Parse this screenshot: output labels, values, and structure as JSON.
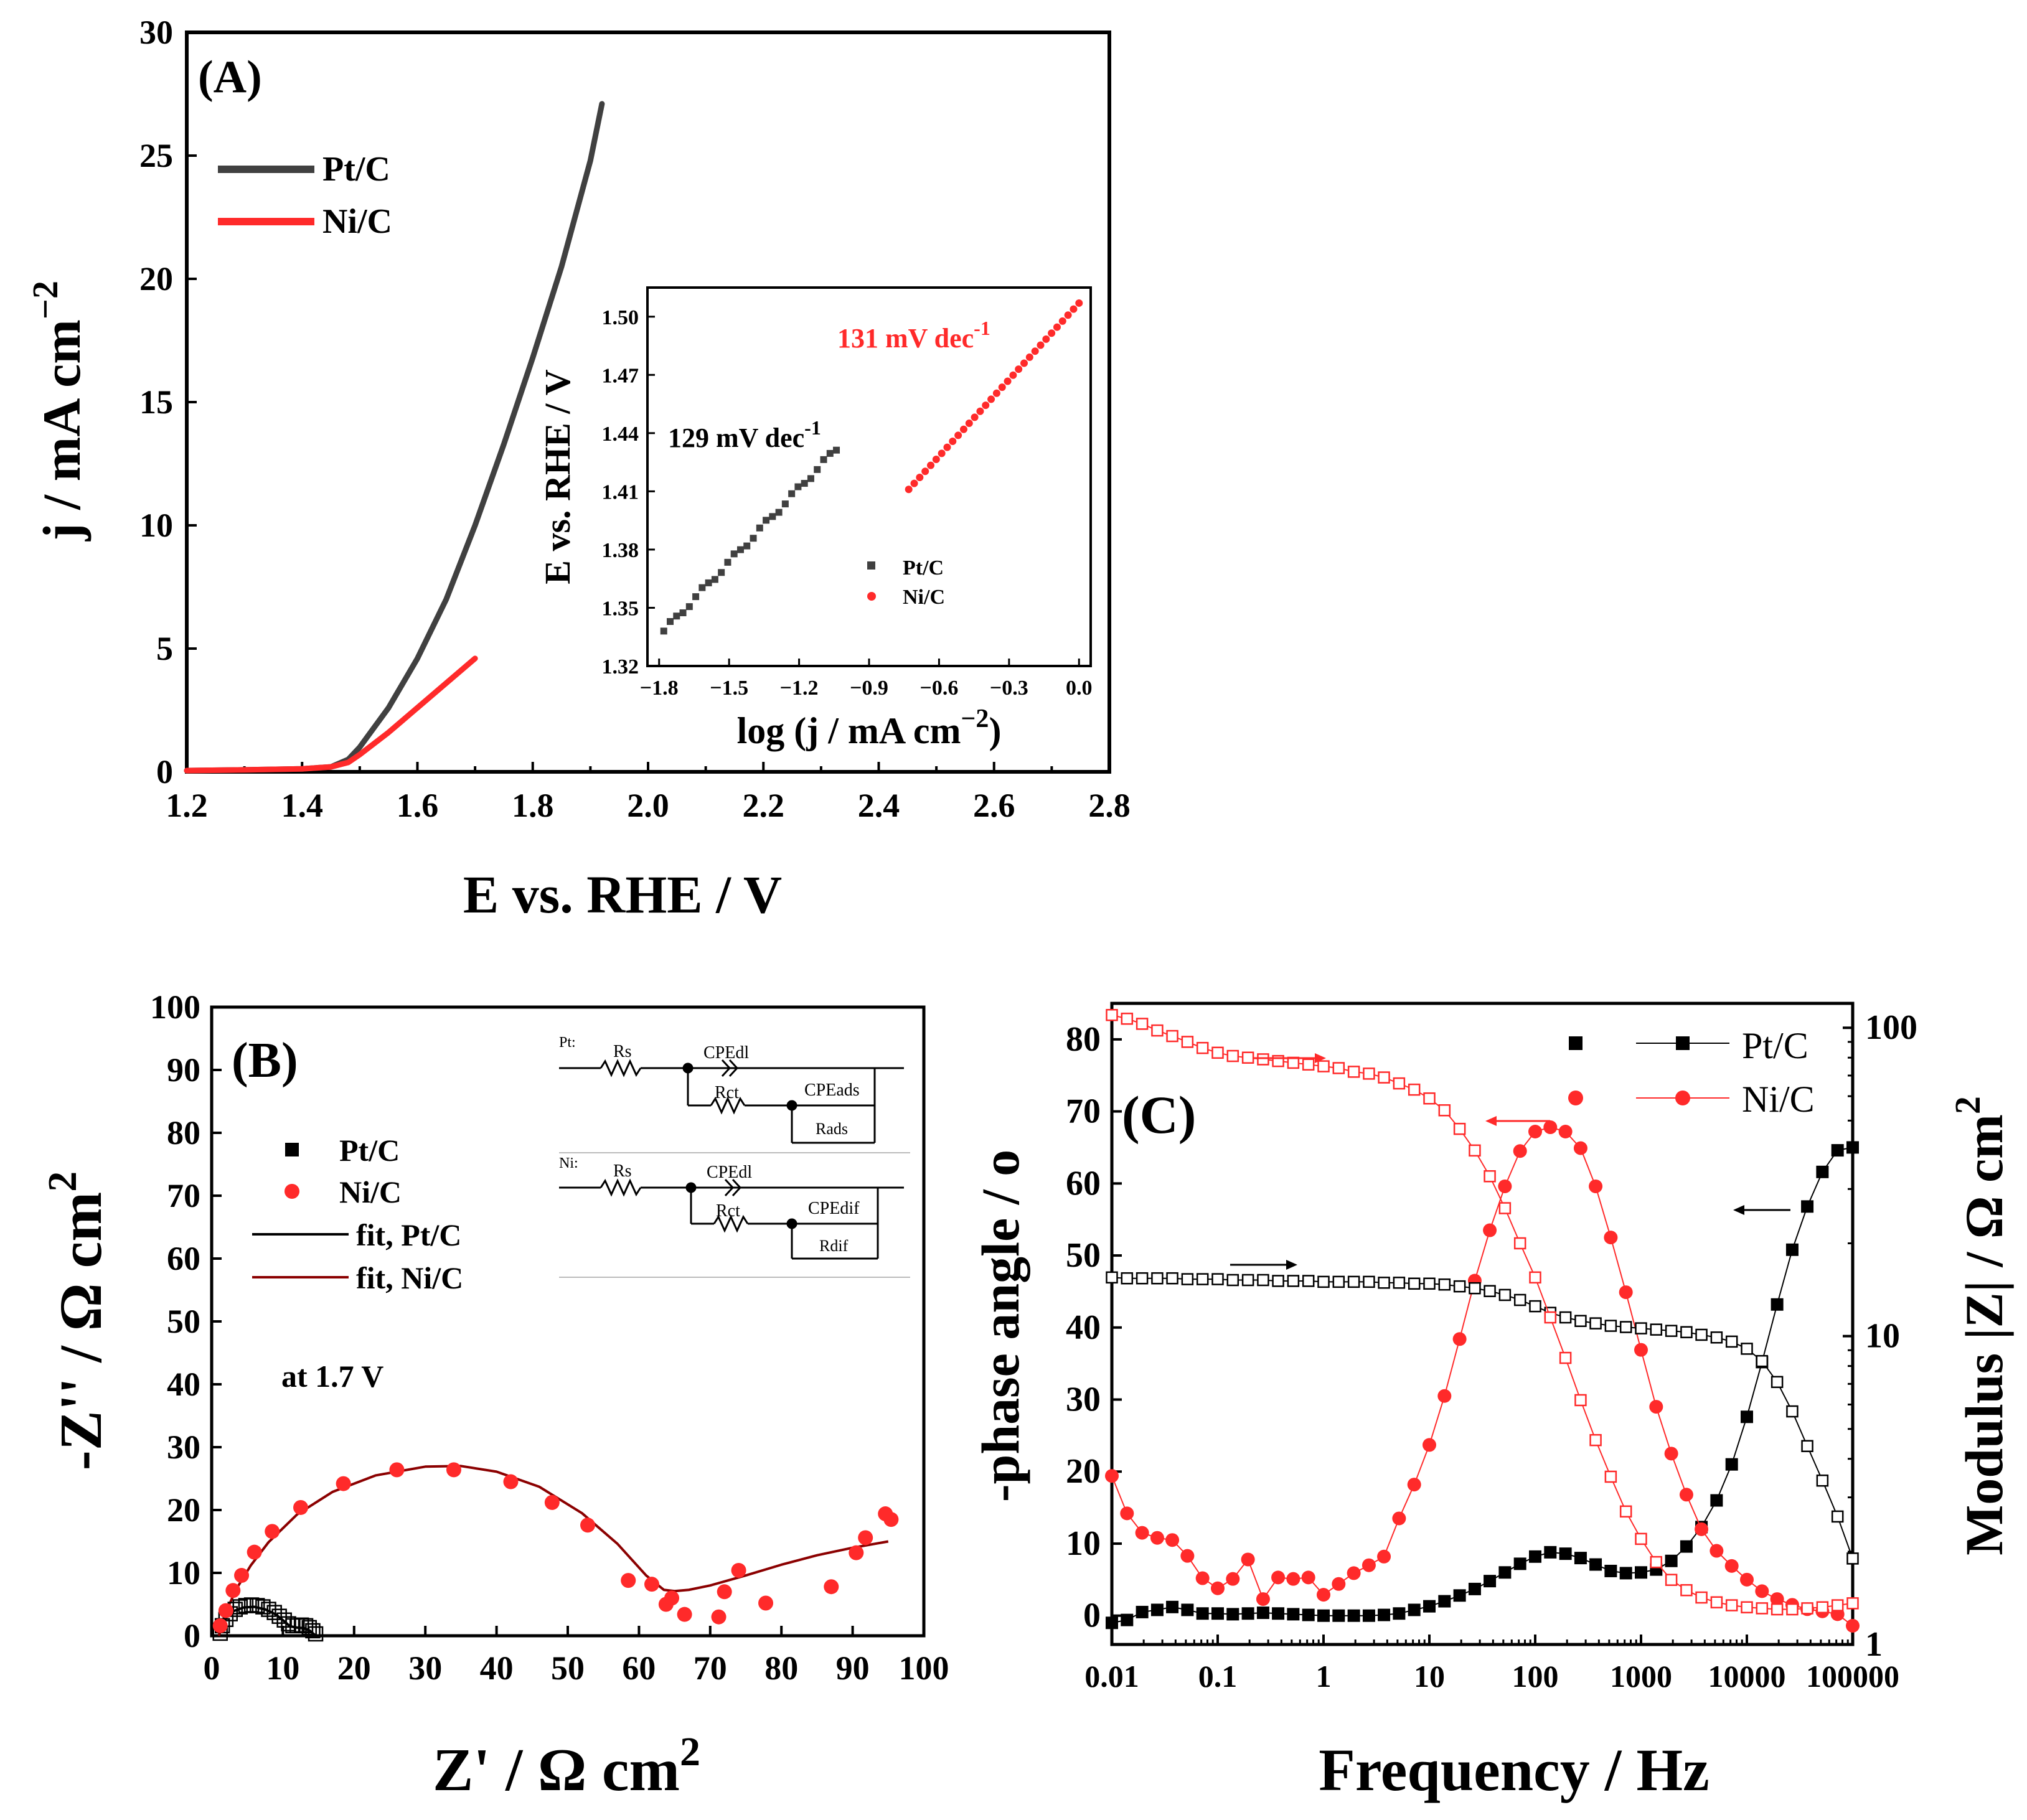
{
  "colors": {
    "pt": "#404040",
    "ni": "#ff2a2a",
    "ni_fit": "#8b0000",
    "black": "#000000"
  },
  "chart_data": [
    {
      "id": "A",
      "panel_label": "(A)",
      "type": "line",
      "xlabel": "E vs. RHE / V",
      "ylabel_main": "j / mA cm",
      "ylabel_sup": "−2",
      "xlim": [
        1.2,
        2.8
      ],
      "ylim": [
        0,
        30
      ],
      "xticks": [
        1.2,
        1.4,
        1.6,
        1.8,
        2.0,
        2.2,
        2.4,
        2.6,
        2.8
      ],
      "xtick_labels": [
        "1.2",
        "1.4",
        "1.6",
        "1.8",
        "2.0",
        "2.2",
        "2.4",
        "2.6",
        "2.8"
      ],
      "yticks": [
        0,
        5,
        10,
        15,
        20,
        25,
        30
      ],
      "ytick_labels": [
        "0",
        "5",
        "10",
        "15",
        "20",
        "25",
        "30"
      ],
      "legend": [
        "Pt/C",
        "Ni/C"
      ],
      "series": [
        {
          "name": "Pt/C",
          "x": [
            1.2,
            1.3,
            1.4,
            1.45,
            1.48,
            1.5,
            1.55,
            1.6,
            1.65,
            1.7,
            1.75,
            1.8,
            1.85,
            1.9,
            1.92
          ],
          "y": [
            0.05,
            0.08,
            0.12,
            0.2,
            0.5,
            1.0,
            2.6,
            4.6,
            7.0,
            10.0,
            13.3,
            16.8,
            20.5,
            24.8,
            27.1
          ]
        },
        {
          "name": "Ni/C",
          "x": [
            1.2,
            1.3,
            1.4,
            1.45,
            1.48,
            1.5,
            1.55,
            1.6,
            1.65,
            1.7
          ],
          "y": [
            0.05,
            0.08,
            0.12,
            0.2,
            0.38,
            0.7,
            1.6,
            2.6,
            3.6,
            4.6
          ]
        }
      ],
      "inset": {
        "type": "scatter",
        "xlabel_main": "log (j / mA cm",
        "xlabel_sup": "−2",
        "xlabel_end": ")",
        "ylabel": "E vs. RHE / V",
        "xlim": [
          -1.85,
          0.05
        ],
        "ylim": [
          1.32,
          1.515
        ],
        "xticks": [
          -1.8,
          -1.5,
          -1.2,
          -0.9,
          -0.6,
          -0.3,
          0.0
        ],
        "xtick_labels": [
          "−1.8",
          "−1.5",
          "−1.2",
          "−0.9",
          "−0.6",
          "−0.3",
          "0.0"
        ],
        "yticks": [
          1.32,
          1.35,
          1.38,
          1.41,
          1.44,
          1.47,
          1.5
        ],
        "ytick_labels": [
          "1.32",
          "1.35",
          "1.38",
          "1.41",
          "1.44",
          "1.47",
          "1.50"
        ],
        "legend": [
          "Pt/C",
          "Ni/C"
        ],
        "annotation_pt_main": "129 mV dec",
        "annotation_pt_sup": "-1",
        "annotation_ni_main": "131 mV dec",
        "annotation_ni_sup": "-1",
        "series": [
          {
            "name": "Pt/C",
            "x_start": -1.78,
            "x_end": -1.04,
            "y_start": 1.338,
            "y_end": 1.432,
            "n": 28
          },
          {
            "name": "Ni/C",
            "x_start": -0.73,
            "x_end": 0.0,
            "y_start": 1.411,
            "y_end": 1.507,
            "n": 32
          }
        ]
      }
    },
    {
      "id": "B",
      "panel_label": "(B)",
      "type": "scatter",
      "xlabel_main": "Z' / Ω cm",
      "xlabel_sup": "2",
      "ylabel_main": "-Z'' / Ω  cm",
      "ylabel_sup": "2",
      "xlim": [
        0,
        100
      ],
      "ylim": [
        0,
        100
      ],
      "xticks": [
        0,
        10,
        20,
        30,
        40,
        50,
        60,
        70,
        80,
        90,
        100
      ],
      "xtick_labels": [
        "0",
        "10",
        "20",
        "30",
        "40",
        "50",
        "60",
        "70",
        "80",
        "90",
        "100"
      ],
      "yticks": [
        0,
        10,
        20,
        30,
        40,
        50,
        60,
        70,
        80,
        90,
        100
      ],
      "ytick_labels": [
        "0",
        "10",
        "20",
        "30",
        "40",
        "50",
        "60",
        "70",
        "80",
        "90",
        "100"
      ],
      "legend": [
        "Pt/C",
        "Ni/C",
        "fit, Pt/C",
        "fit, Ni/C"
      ],
      "note": "at 1.7 V",
      "series": [
        {
          "name": "Pt/C",
          "x": [
            1.2,
            1.5,
            2.0,
            2.6,
            3.3,
            4.0,
            4.8,
            5.6,
            6.4,
            7.2,
            8.0,
            8.8,
            9.5,
            10.2,
            10.8,
            11.4,
            12.0,
            12.6,
            13.2,
            13.7,
            14.2,
            14.6
          ],
          "y": [
            0.4,
            1.6,
            2.6,
            3.5,
            4.2,
            4.6,
            4.8,
            4.9,
            4.8,
            4.6,
            4.2,
            3.7,
            3.1,
            2.5,
            1.9,
            1.6,
            1.6,
            1.7,
            1.6,
            1.3,
            0.8,
            0.3
          ]
        },
        {
          "name": "Ni/C",
          "x": [
            1.2,
            2.0,
            3.0,
            4.2,
            6.0,
            8.5,
            12.5,
            18.5,
            26.0,
            34.0,
            42.0,
            47.8,
            52.8,
            58.5,
            61.8,
            63.8,
            64.6,
            66.4,
            71.2,
            72.0,
            74.0,
            77.8,
            87.0,
            90.5,
            91.8,
            94.6,
            95.4
          ],
          "y": [
            1.6,
            4.0,
            7.2,
            9.6,
            13.3,
            16.6,
            20.4,
            24.2,
            26.4,
            26.4,
            24.5,
            21.2,
            17.6,
            8.8,
            8.2,
            5.0,
            6.0,
            3.4,
            3.0,
            7.0,
            10.4,
            5.2,
            7.8,
            13.2,
            15.6,
            19.4,
            18.5
          ]
        },
        {
          "name": "fit, Pt/C",
          "x": [
            1.0,
            2.0,
            3.0,
            4.5,
            6.0,
            7.5,
            9.0,
            10.2,
            11.0,
            12.0,
            13.0,
            13.8,
            14.5
          ],
          "y": [
            0.0,
            2.9,
            3.9,
            4.5,
            4.6,
            4.2,
            3.4,
            2.3,
            1.5,
            1.3,
            1.2,
            0.8,
            0.1
          ]
        },
        {
          "name": "fit, Ni/C",
          "x": [
            1.0,
            2.0,
            3.5,
            5.5,
            8.0,
            12.0,
            17.0,
            23.0,
            30.0,
            35.0,
            40.0,
            46.0,
            52.0,
            57.0,
            61.0,
            63.5,
            65.0,
            67.0,
            70.0,
            75.0,
            80.0,
            85.0,
            90.0,
            95.0
          ],
          "y": [
            0.0,
            3.8,
            7.5,
            11.2,
            14.9,
            19.3,
            22.9,
            25.5,
            26.9,
            27.0,
            26.1,
            23.7,
            19.5,
            14.6,
            9.6,
            7.3,
            7.1,
            7.3,
            8.0,
            9.6,
            11.3,
            12.8,
            14.0,
            15.0
          ]
        }
      ],
      "circuits": [
        {
          "label": "Pt:",
          "r1": "Rs",
          "cpe1": "CPEdl",
          "r2": "Rct",
          "cpe2": "CPEads",
          "r3": "Rads"
        },
        {
          "label": "Ni:",
          "r1": "Rs",
          "cpe1": "CPEdl",
          "r2": "Rct",
          "cpe2": "CPEdif",
          "r3": "Rdif"
        }
      ]
    },
    {
      "id": "C",
      "panel_label": "(C)",
      "type": "line",
      "xscale": "log",
      "xlabel": "Frequency / Hz",
      "ylabel_left": "-phase angle / o",
      "ylabel_right_main": "Modulus |Z| / Ω cm",
      "ylabel_right_sup": "2",
      "xlim": [
        0.01,
        100000
      ],
      "ylim_left": [
        -4,
        85
      ],
      "ylim_right": [
        1,
        120
      ],
      "xticks": [
        0.01,
        0.1,
        1,
        10,
        100,
        1000,
        10000,
        100000
      ],
      "xtick_labels": [
        "0.01",
        "0.1",
        "1",
        "10",
        "100",
        "1000",
        "10000",
        "100000"
      ],
      "yticks_left": [
        0,
        10,
        20,
        30,
        40,
        50,
        60,
        70,
        80
      ],
      "ytick_labels_left": [
        "0",
        "10",
        "20",
        "30",
        "40",
        "50",
        "60",
        "70",
        "80"
      ],
      "yticks_right": [
        1,
        10,
        100
      ],
      "ytick_labels_right": [
        "1",
        "10",
        "100"
      ],
      "legend": [
        "Pt/C",
        "Ni/C"
      ],
      "logf": [
        -2.0,
        -1.857,
        -1.714,
        -1.571,
        -1.429,
        -1.286,
        -1.143,
        -1.0,
        -0.857,
        -0.714,
        -0.571,
        -0.429,
        -0.286,
        -0.143,
        0.0,
        0.143,
        0.286,
        0.429,
        0.571,
        0.714,
        0.857,
        1.0,
        1.143,
        1.286,
        1.429,
        1.571,
        1.714,
        1.857,
        2.0,
        2.143,
        2.286,
        2.429,
        2.571,
        2.714,
        2.857,
        3.0,
        3.143,
        3.286,
        3.429,
        3.571,
        3.714,
        3.857,
        4.0,
        4.143,
        4.286,
        4.429,
        4.571,
        4.714,
        4.857,
        5.0
      ],
      "series": [
        {
          "name": "Pt/C phase",
          "axis": "left",
          "marker": "filled-square",
          "values": [
            -1.0,
            -0.6,
            0.5,
            0.8,
            1.2,
            0.8,
            0.3,
            0.3,
            0.2,
            0.3,
            0.4,
            0.3,
            0.2,
            0.1,
            0.0,
            0.0,
            0.0,
            0.0,
            0.1,
            0.3,
            0.8,
            1.3,
            2.0,
            2.8,
            3.7,
            4.8,
            6.0,
            7.2,
            8.2,
            8.8,
            8.6,
            8.0,
            7.1,
            6.2,
            5.9,
            6.0,
            6.4,
            7.6,
            9.6,
            12.3,
            16.0,
            21.0,
            27.6,
            35.2,
            43.2,
            50.8,
            56.8,
            61.6,
            64.6,
            65.0
          ]
        },
        {
          "name": "Ni/C phase",
          "axis": "left",
          "marker": "filled-circle",
          "values": [
            19.4,
            14.2,
            11.5,
            10.8,
            10.5,
            8.3,
            5.2,
            3.8,
            5.1,
            7.8,
            2.3,
            5.3,
            5.1,
            5.3,
            2.9,
            4.4,
            5.9,
            7.0,
            8.2,
            13.5,
            18.2,
            23.7,
            30.5,
            38.4,
            46.5,
            53.5,
            59.6,
            64.5,
            67.2,
            67.8,
            67.2,
            64.9,
            59.6,
            52.5,
            44.9,
            36.9,
            29.0,
            22.5,
            16.8,
            12.0,
            9.0,
            6.9,
            5.0,
            3.4,
            2.3,
            1.5,
            0.9,
            0.6,
            0.2,
            -1.4
          ]
        },
        {
          "name": "Pt/C modulus",
          "axis": "right",
          "marker": "open-square",
          "values": [
            15.5,
            15.4,
            15.4,
            15.4,
            15.4,
            15.3,
            15.3,
            15.3,
            15.2,
            15.2,
            15.2,
            15.1,
            15.1,
            15.1,
            15.0,
            15.0,
            15.0,
            15.0,
            14.9,
            14.9,
            14.8,
            14.8,
            14.7,
            14.5,
            14.3,
            14.0,
            13.6,
            13.1,
            12.5,
            11.9,
            11.5,
            11.2,
            11.0,
            10.8,
            10.7,
            10.6,
            10.5,
            10.4,
            10.3,
            10.1,
            9.9,
            9.6,
            9.1,
            8.3,
            7.1,
            5.7,
            4.4,
            3.4,
            2.6,
            1.9
          ]
        },
        {
          "name": "Ni/C modulus",
          "axis": "right",
          "marker": "open-square",
          "values": [
            110,
            107,
            103,
            98,
            94,
            90,
            86,
            83,
            81,
            80,
            79,
            78,
            77,
            76,
            75,
            74,
            72,
            71,
            69,
            66,
            63,
            59,
            54,
            47,
            40,
            33,
            26,
            20,
            15.5,
            11.5,
            8.5,
            6.2,
            4.6,
            3.5,
            2.7,
            2.2,
            1.85,
            1.62,
            1.5,
            1.42,
            1.37,
            1.34,
            1.32,
            1.31,
            1.3,
            1.3,
            1.31,
            1.32,
            1.34,
            1.36
          ]
        }
      ]
    }
  ]
}
